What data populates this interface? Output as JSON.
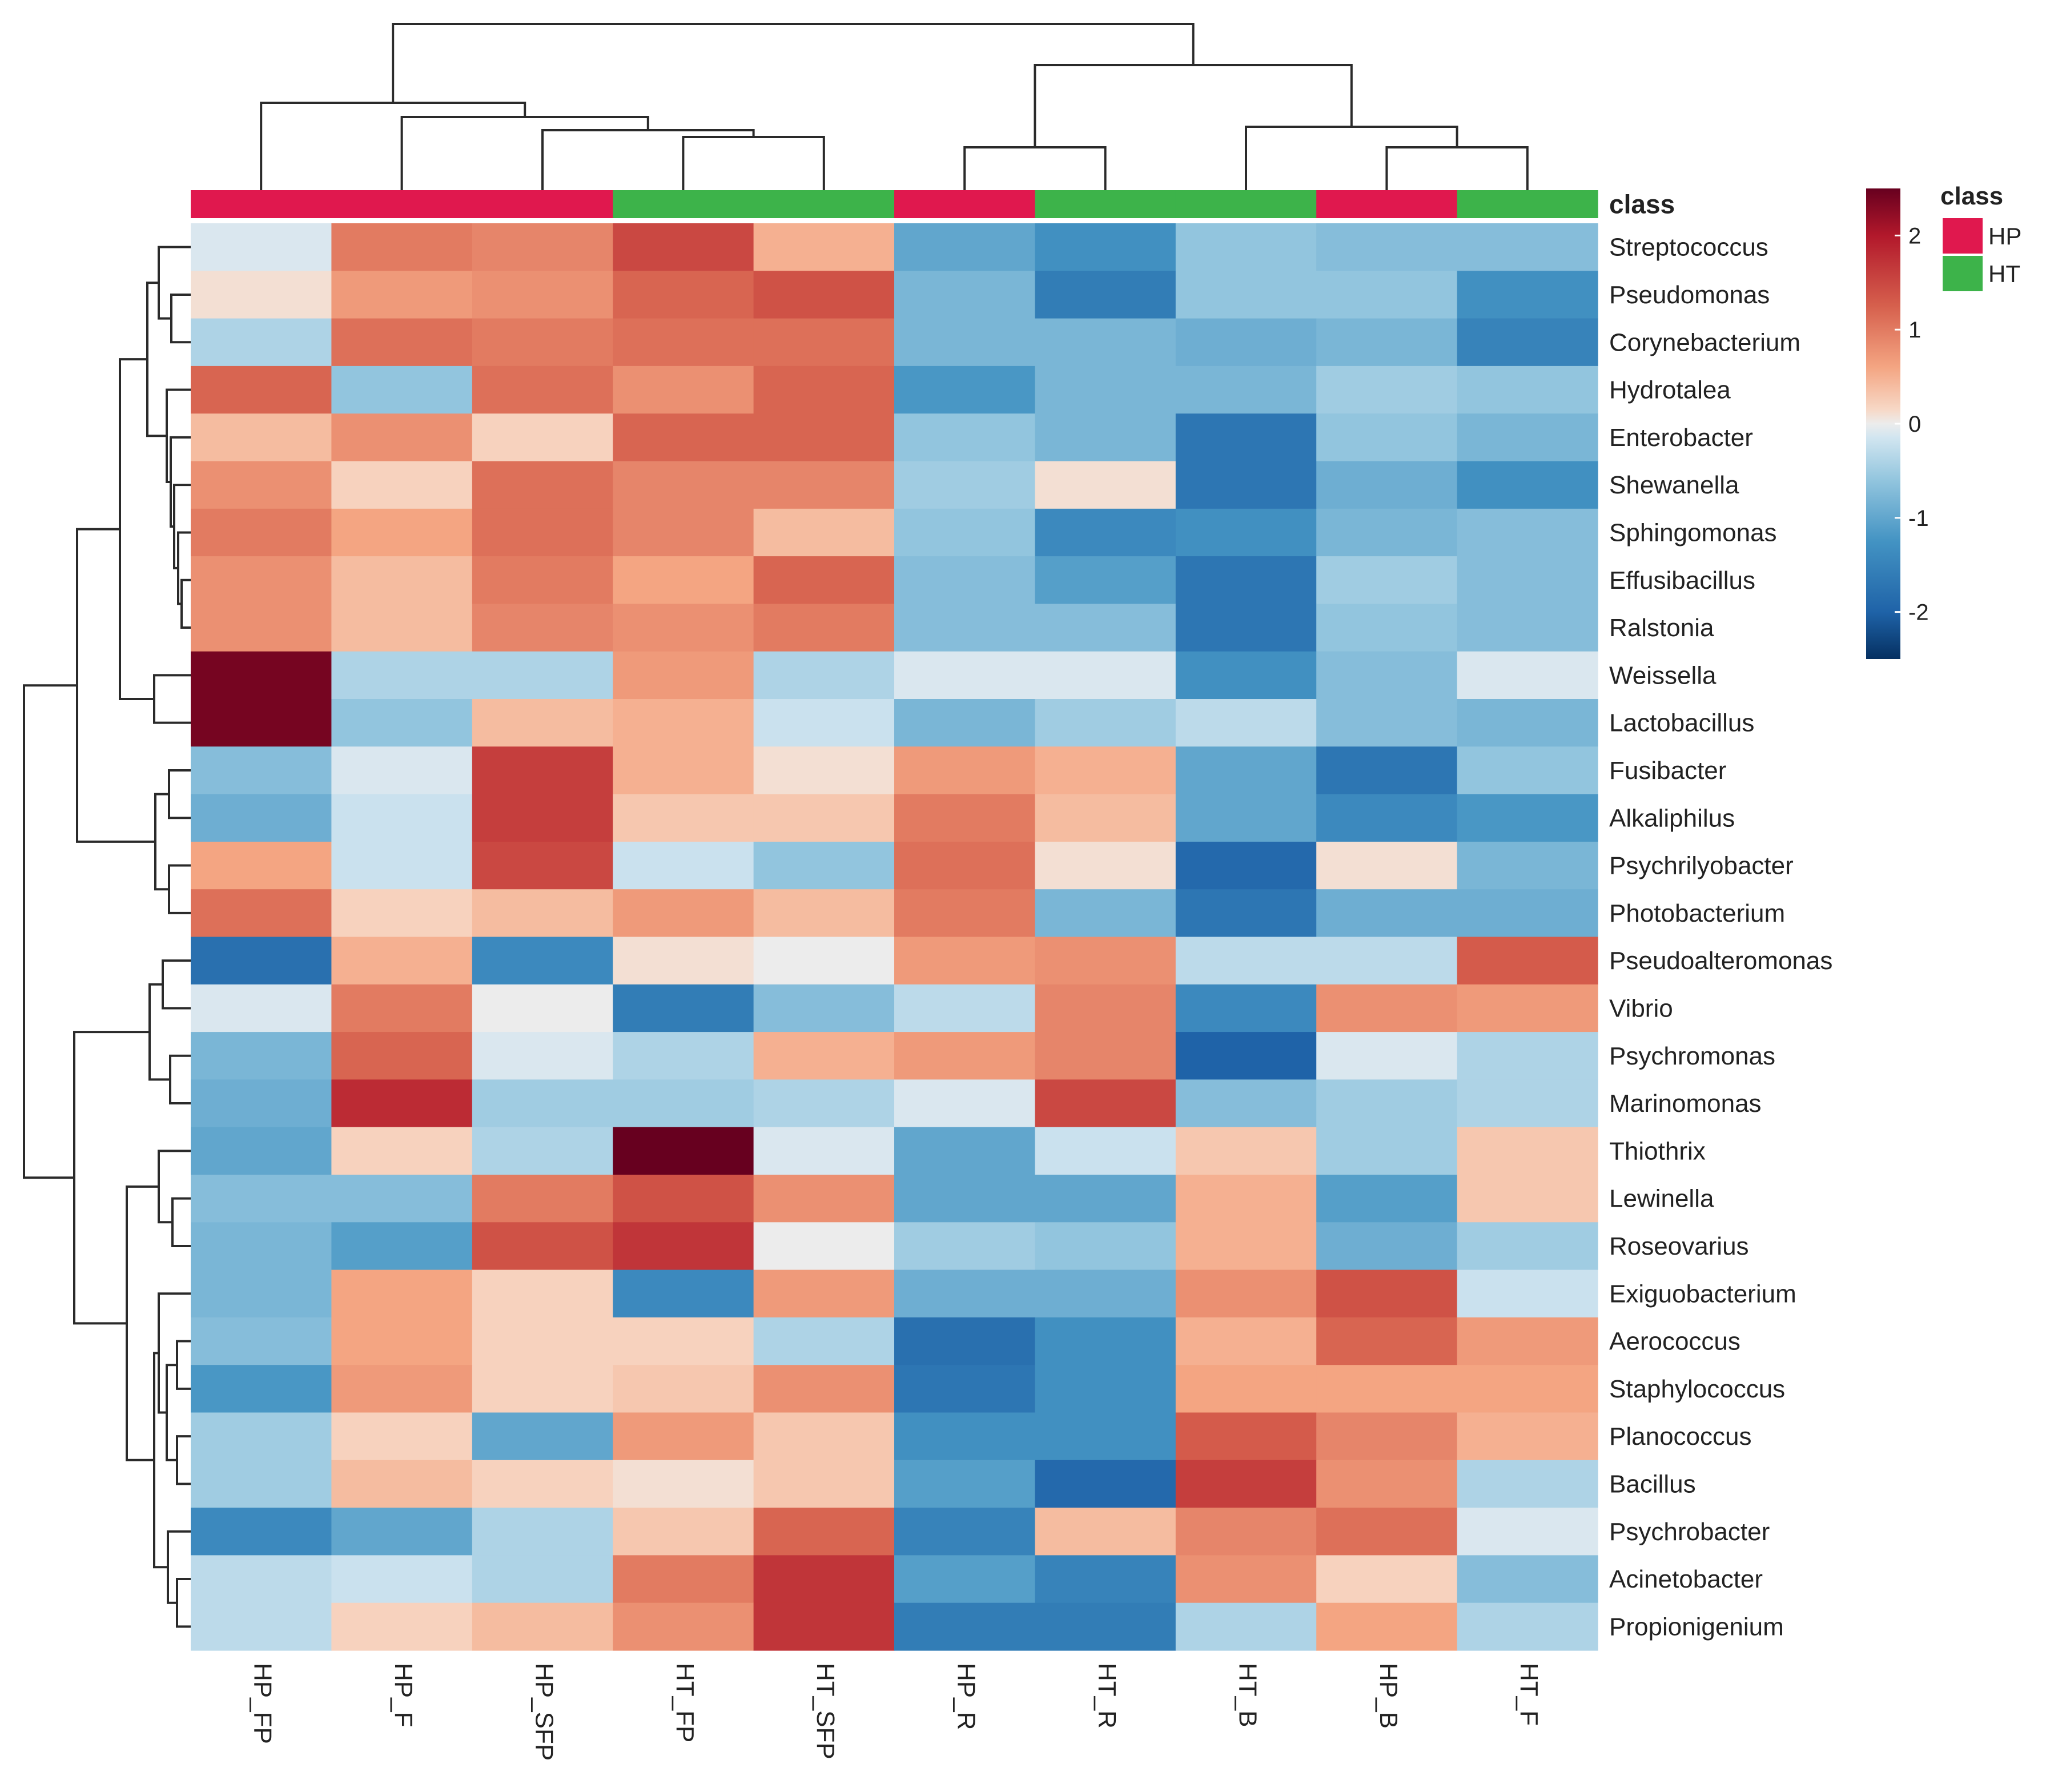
{
  "chart_data": {
    "type": "heatmap",
    "title": "",
    "columns": [
      "HP_FP",
      "HP_F",
      "HP_SFP",
      "HT_FP",
      "HT_SFP",
      "HP_R",
      "HT_R",
      "HT_B",
      "HP_B",
      "HT_F"
    ],
    "column_classes": [
      "HP",
      "HP",
      "HP",
      "HT",
      "HT",
      "HP",
      "HT",
      "HT",
      "HP",
      "HT"
    ],
    "rows": [
      "Streptococcus",
      "Pseudomonas",
      "Corynebacterium",
      "Hydrotalea",
      "Enterobacter",
      "Shewanella",
      "Sphingomonas",
      "Effusibacillus",
      "Ralstonia",
      "Weissella",
      "Lactobacillus",
      "Fusibacter",
      "Alkaliphilus",
      "Psychrilyobacter",
      "Photobacterium",
      "Pseudoalteromonas",
      "Vibrio",
      "Psychromonas",
      "Marinomonas",
      "Thiothrix",
      "Lewinella",
      "Roseovarius",
      "Exiguobacterium",
      "Aerococcus",
      "Staphylococcus",
      "Planococcus",
      "Bacillus",
      "Psychrobacter",
      "Acinetobacter",
      "Propionigenium"
    ],
    "values": [
      [
        -0.1,
        1.0,
        0.9,
        1.5,
        0.5,
        -1.0,
        -1.3,
        -0.6,
        -0.7,
        -0.7
      ],
      [
        0.1,
        0.7,
        0.8,
        1.2,
        1.4,
        -0.8,
        -1.6,
        -0.6,
        -0.6,
        -1.3
      ],
      [
        -0.4,
        1.1,
        1.0,
        1.1,
        1.1,
        -0.8,
        -0.8,
        -0.9,
        -0.8,
        -1.5
      ],
      [
        1.2,
        -0.6,
        1.1,
        0.8,
        1.2,
        -1.2,
        -0.8,
        -0.8,
        -0.5,
        -0.6
      ],
      [
        0.4,
        0.8,
        0.2,
        1.2,
        1.2,
        -0.6,
        -0.8,
        -1.7,
        -0.6,
        -0.8
      ],
      [
        0.8,
        0.2,
        1.1,
        0.9,
        0.9,
        -0.5,
        0.1,
        -1.7,
        -0.9,
        -1.3
      ],
      [
        1.0,
        0.6,
        1.1,
        0.9,
        0.4,
        -0.6,
        -1.4,
        -1.3,
        -0.8,
        -0.7
      ],
      [
        0.8,
        0.4,
        1.0,
        0.6,
        1.2,
        -0.7,
        -1.1,
        -1.7,
        -0.5,
        -0.7
      ],
      [
        0.8,
        0.4,
        0.9,
        0.8,
        1.0,
        -0.7,
        -0.7,
        -1.7,
        -0.6,
        -0.7
      ],
      [
        2.4,
        -0.4,
        -0.4,
        0.7,
        -0.4,
        -0.1,
        -0.1,
        -1.3,
        -0.7,
        -0.1
      ],
      [
        2.4,
        -0.6,
        0.4,
        0.5,
        -0.2,
        -0.8,
        -0.5,
        -0.3,
        -0.7,
        -0.8
      ],
      [
        -0.7,
        -0.1,
        1.6,
        0.5,
        0.1,
        0.7,
        0.5,
        -1.0,
        -1.7,
        -0.6
      ],
      [
        -0.9,
        -0.2,
        1.6,
        0.3,
        0.3,
        1.0,
        0.4,
        -1.0,
        -1.4,
        -1.2
      ],
      [
        0.6,
        -0.2,
        1.5,
        -0.2,
        -0.6,
        1.1,
        0.1,
        -1.9,
        0.1,
        -0.8
      ],
      [
        1.1,
        0.2,
        0.4,
        0.7,
        0.4,
        1.0,
        -0.8,
        -1.7,
        -0.9,
        -0.9
      ],
      [
        -1.8,
        0.5,
        -1.4,
        0.1,
        0.0,
        0.7,
        0.8,
        -0.3,
        -0.3,
        1.3
      ],
      [
        -0.1,
        1.0,
        0.0,
        -1.6,
        -0.7,
        -0.3,
        0.9,
        -1.4,
        0.8,
        0.7
      ],
      [
        -0.8,
        1.2,
        -0.1,
        -0.4,
        0.5,
        0.7,
        0.9,
        -2.0,
        -0.1,
        -0.4
      ],
      [
        -0.9,
        1.8,
        -0.5,
        -0.5,
        -0.4,
        -0.1,
        1.5,
        -0.7,
        -0.5,
        -0.4
      ],
      [
        -1.0,
        0.2,
        -0.4,
        2.6,
        -0.1,
        -1.0,
        -0.2,
        0.3,
        -0.5,
        0.3
      ],
      [
        -0.7,
        -0.7,
        1.0,
        1.4,
        0.8,
        -1.0,
        -1.0,
        0.5,
        -1.1,
        0.3
      ],
      [
        -0.8,
        -1.1,
        1.4,
        1.7,
        0.0,
        -0.5,
        -0.6,
        0.5,
        -0.9,
        -0.5
      ],
      [
        -0.8,
        0.6,
        0.2,
        -1.4,
        0.7,
        -0.9,
        -0.9,
        0.8,
        1.4,
        -0.2
      ],
      [
        -0.7,
        0.6,
        0.2,
        0.2,
        -0.4,
        -1.8,
        -1.3,
        0.5,
        1.2,
        0.7
      ],
      [
        -1.2,
        0.7,
        0.2,
        0.3,
        0.8,
        -1.7,
        -1.3,
        0.6,
        0.6,
        0.6
      ],
      [
        -0.5,
        0.2,
        -1.0,
        0.7,
        0.3,
        -1.3,
        -1.3,
        1.3,
        0.9,
        0.5
      ],
      [
        -0.5,
        0.4,
        0.2,
        0.1,
        0.3,
        -1.1,
        -1.9,
        1.6,
        0.8,
        -0.4
      ],
      [
        -1.4,
        -1.0,
        -0.4,
        0.3,
        1.2,
        -1.5,
        0.4,
        0.9,
        1.1,
        -0.1
      ],
      [
        -0.3,
        -0.2,
        -0.4,
        1.0,
        1.7,
        -1.1,
        -1.5,
        0.8,
        0.2,
        -0.7
      ],
      [
        -0.3,
        0.2,
        0.4,
        0.8,
        1.7,
        -1.6,
        -1.6,
        -0.4,
        0.6,
        -0.4
      ]
    ],
    "color_scale": {
      "min": -2.5,
      "max": 2.5,
      "ticks": [
        "2",
        "1",
        "0",
        "-1",
        "-2"
      ],
      "tick_values": [
        2,
        1,
        0,
        -1,
        -2
      ],
      "stops": [
        {
          "value": -2.5,
          "color": "#053061"
        },
        {
          "value": -2.0,
          "color": "#1f63a8"
        },
        {
          "value": -1.25,
          "color": "#4393c3"
        },
        {
          "value": -0.6,
          "color": "#92c5de"
        },
        {
          "value": -0.15,
          "color": "#d1e5f0"
        },
        {
          "value": 0.0,
          "color": "#ececec"
        },
        {
          "value": 0.15,
          "color": "#f7d8c6"
        },
        {
          "value": 0.6,
          "color": "#f4a582"
        },
        {
          "value": 1.25,
          "color": "#d6604d"
        },
        {
          "value": 2.0,
          "color": "#b2182b"
        },
        {
          "value": 2.5,
          "color": "#67001f"
        }
      ]
    },
    "annotation_label": "class",
    "legend": {
      "title": "class",
      "items": [
        {
          "label": "HP",
          "color": "#e0184e"
        },
        {
          "label": "HT",
          "color": "#3db34a"
        }
      ]
    },
    "column_dendrogram": true,
    "row_dendrogram": true
  }
}
